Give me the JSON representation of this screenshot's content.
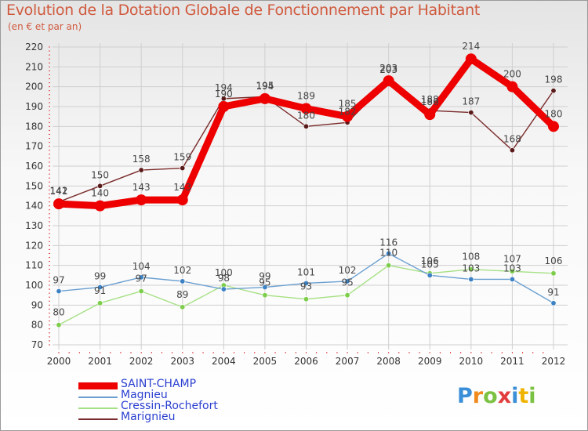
{
  "chart_data": {
    "type": "line",
    "title": "Evolution de la Dotation Globale de Fonctionnement par Habitant",
    "subtitle": "(en € et par an)",
    "categories": [
      "2000",
      "2001",
      "2002",
      "2003",
      "2004",
      "2005",
      "2006",
      "2007",
      "2008",
      "2009",
      "2010",
      "2011",
      "2012"
    ],
    "ylim": [
      70,
      220
    ],
    "yticks": [
      70,
      80,
      90,
      100,
      110,
      120,
      130,
      140,
      150,
      160,
      170,
      180,
      190,
      200,
      210,
      220
    ],
    "grid": true,
    "legend_position": "bottom-left",
    "series": [
      {
        "name": "SAINT-CHAMP",
        "color": "#ee0000",
        "point_color": "#ee0000",
        "values": [
          141,
          140,
          143,
          143,
          190,
          194,
          189,
          185,
          203,
          186,
          214,
          200,
          180
        ]
      },
      {
        "name": "Magnieu",
        "color": "#6a9fd0",
        "point_color": "#3d82c4",
        "values": [
          97,
          99,
          104,
          102,
          98,
          99,
          101,
          102,
          116,
          105,
          103,
          103,
          91
        ]
      },
      {
        "name": "Cressin-Rochefort",
        "color": "#a6e084",
        "point_color": "#7ccd4a",
        "values": [
          80,
          91,
          97,
          89,
          100,
          95,
          93,
          95,
          110,
          106,
          108,
          107,
          106
        ]
      },
      {
        "name": "Marignieu",
        "color": "#7a2a2a",
        "point_color": "#5a1a1a",
        "values": [
          142,
          150,
          158,
          159,
          194,
          195,
          180,
          182,
          203,
          188,
          187,
          168,
          198
        ]
      }
    ]
  },
  "logo": {
    "text": "Proxiti",
    "letters": [
      {
        "ch": "P",
        "color": "#3a8fd8"
      },
      {
        "ch": "r",
        "color": "#f08a1c"
      },
      {
        "ch": "o",
        "color": "#7cc242"
      },
      {
        "ch": "x",
        "color": "#e23d3d"
      },
      {
        "ch": "i",
        "color": "#3a8fd8"
      },
      {
        "ch": "t",
        "color": "#f0b400"
      },
      {
        "ch": "i",
        "color": "#7cc242"
      }
    ]
  }
}
